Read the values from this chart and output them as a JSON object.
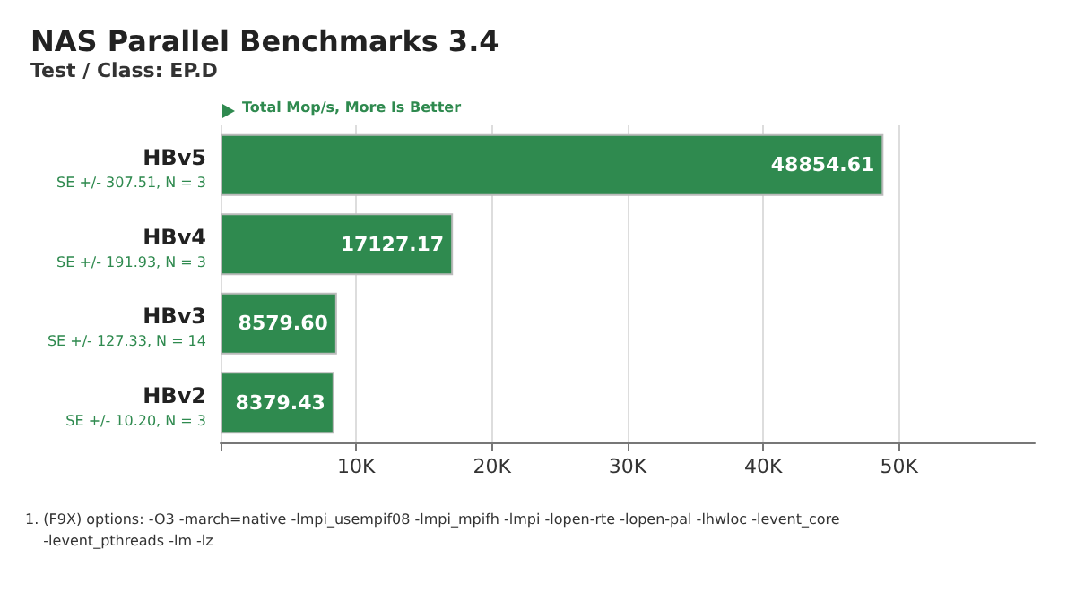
{
  "chart_data": {
    "type": "bar",
    "orientation": "horizontal",
    "title": "NAS Parallel Benchmarks 3.4",
    "subtitle": "Test / Class: EP.D",
    "xlabel": "Total Mop/s, More Is Better",
    "categories": [
      "HBv5",
      "HBv4",
      "HBv3",
      "HBv2"
    ],
    "values": [
      48854.61,
      17127.17,
      8579.6,
      8379.43
    ],
    "color": "#2f8a4f",
    "value_labels": [
      "48854.61",
      "17127.17",
      "8579.60",
      "8379.43"
    ],
    "xlim": [
      0,
      60000
    ],
    "xticks": [
      {
        "value": 0,
        "label": null
      },
      {
        "value": 10000,
        "label": "10K"
      },
      {
        "value": 20000,
        "label": "20K"
      },
      {
        "value": 30000,
        "label": "30K"
      },
      {
        "value": 40000,
        "label": "40K"
      },
      {
        "value": 50000,
        "label": "50K"
      }
    ],
    "grid": "x",
    "annotations": [
      "SE +/- 307.51, N = 3",
      "SE +/- 191.93, N = 3",
      "SE +/- 127.33, N = 14",
      "SE +/- 10.20, N = 3",
      "1. (F9X) options: -O3 -march=native -lmpi_usempif08 -lmpi_mpifh -lmpi -lopen-rte -lopen-pal -lhwloc -levent_core\n    -levent_pthreads -lm -lz"
    ]
  }
}
